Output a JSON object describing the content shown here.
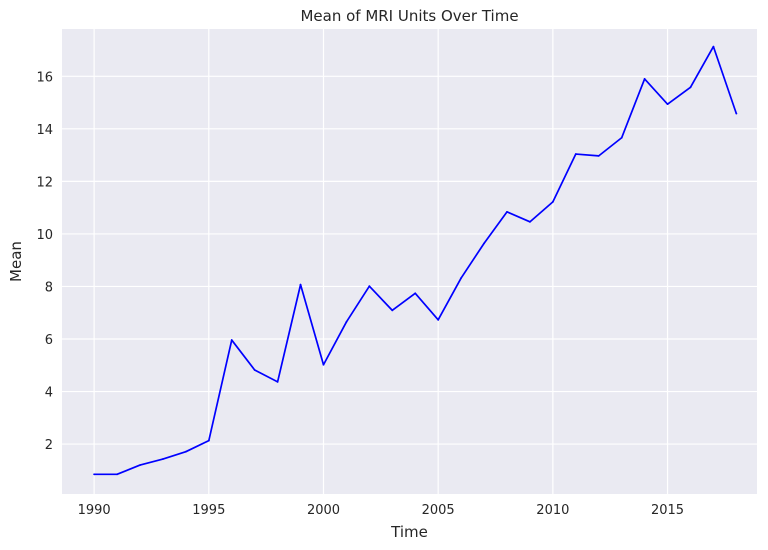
{
  "chart_data": {
    "type": "line",
    "title": "Mean of MRI Units Over Time",
    "xlabel": "Time",
    "ylabel": "Mean",
    "xlim": [
      1988.6,
      2018.9
    ],
    "ylim": [
      0.1,
      17.8
    ],
    "xticks": [
      1990,
      1995,
      2000,
      2005,
      2010,
      2015
    ],
    "yticks": [
      2,
      4,
      6,
      8,
      10,
      12,
      14,
      16
    ],
    "grid": true,
    "series": [
      {
        "color": "#0000ff",
        "x": [
          1990,
          1991,
          1992,
          1993,
          1994,
          1995,
          1996,
          1997,
          1998,
          1999,
          2000,
          2001,
          2002,
          2003,
          2004,
          2005,
          2006,
          2007,
          2008,
          2009,
          2010,
          2011,
          2012,
          2013,
          2014,
          2015,
          2016,
          2017,
          2018
        ],
        "y": [
          0.85,
          0.85,
          1.2,
          1.43,
          1.71,
          2.13,
          5.96,
          4.82,
          4.37,
          8.07,
          5.02,
          6.65,
          8.01,
          7.09,
          7.74,
          6.73,
          8.32,
          9.64,
          10.84,
          10.46,
          11.22,
          13.04,
          12.97,
          13.66,
          15.9,
          14.94,
          15.58,
          17.13,
          14.58
        ]
      }
    ]
  }
}
